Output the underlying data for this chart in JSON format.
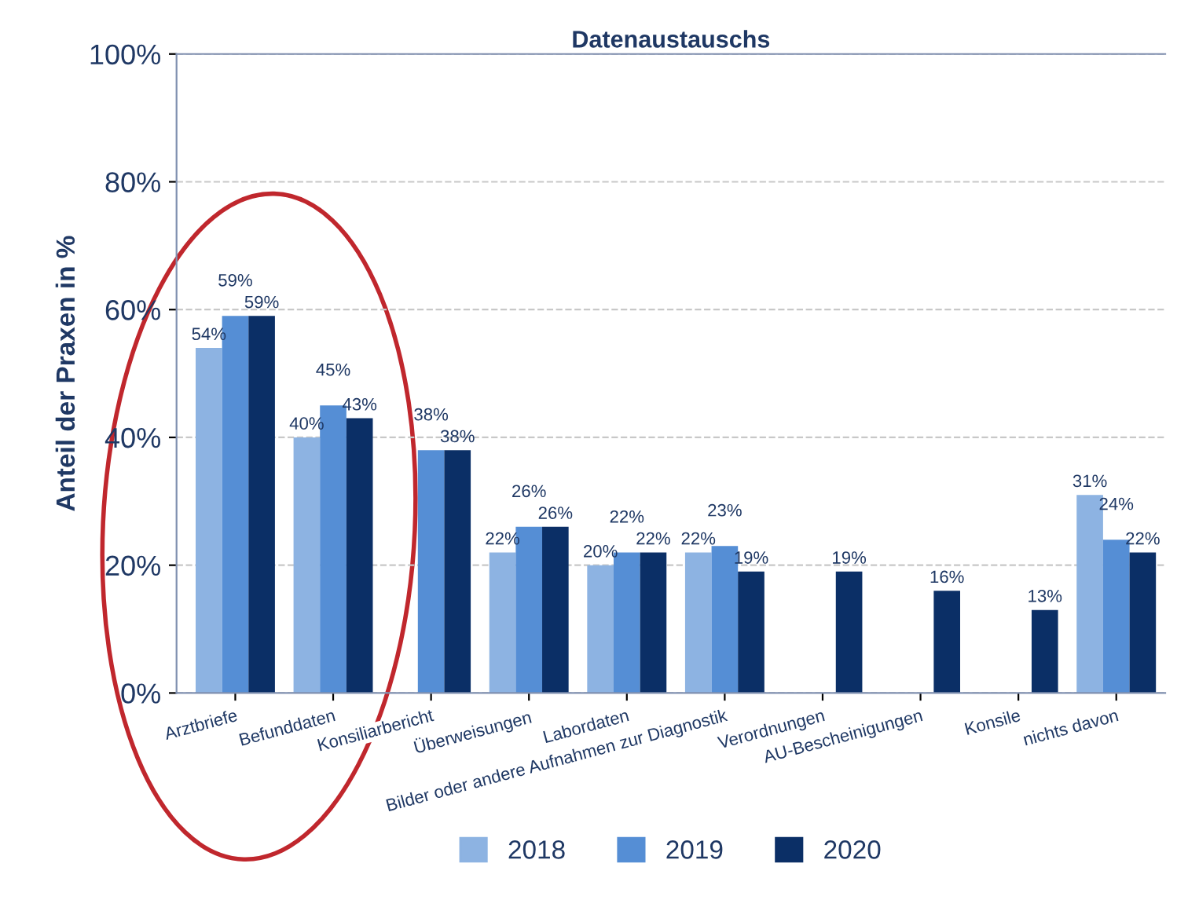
{
  "chart_data": {
    "type": "bar",
    "title": "Datenaustauschs",
    "ylabel": "Anteil der Praxen in %",
    "categories": [
      "Arztbriefe",
      "Befunddaten",
      "Konsiliarbericht",
      "Überweisungen",
      "Labordaten",
      "Bilder oder andere Aufnahmen zur Diagnostik",
      "Verordnungen",
      "AU-Bescheinigungen",
      "Konsile",
      "nichts davon"
    ],
    "series": [
      {
        "name": "2018",
        "color": "#8db3e2",
        "values": [
          54,
          40,
          null,
          22,
          20,
          22,
          null,
          null,
          null,
          31
        ],
        "value_labels": [
          "54%",
          "40%",
          null,
          "22%",
          "20%",
          "22%",
          null,
          null,
          null,
          "31%"
        ]
      },
      {
        "name": "2019",
        "color": "#558ed5",
        "values": [
          59,
          45,
          38,
          26,
          22,
          23,
          null,
          null,
          null,
          24
        ],
        "value_labels": [
          "59%",
          "45%",
          "38%",
          "26%",
          "22%",
          "23%",
          null,
          null,
          null,
          "24%"
        ]
      },
      {
        "name": "2020",
        "color": "#0b2f66",
        "values": [
          59,
          43,
          38,
          26,
          22,
          19,
          19,
          16,
          13,
          22
        ],
        "value_labels": [
          "59%",
          "43%",
          "38%",
          "26%",
          "22%",
          "19%",
          "19%",
          "16%",
          "13%",
          "22%"
        ]
      }
    ],
    "ylim": [
      0,
      100
    ],
    "yticks": [
      {
        "value": 0,
        "label": "0%"
      },
      {
        "value": 20,
        "label": "20%"
      },
      {
        "value": 40,
        "label": "40%"
      },
      {
        "value": 60,
        "label": "60%"
      },
      {
        "value": 80,
        "label": "80%"
      },
      {
        "value": 100,
        "label": "100%"
      }
    ],
    "grid": "y",
    "legend": "bottom"
  }
}
